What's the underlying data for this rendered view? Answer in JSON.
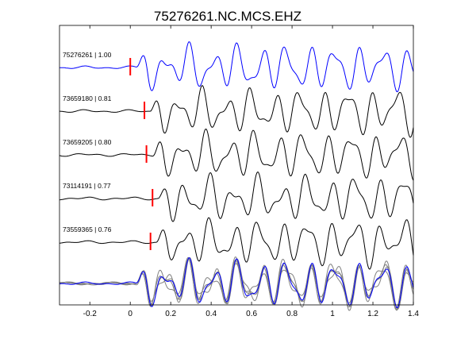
{
  "chart_data": {
    "type": "line",
    "title": "75276261.NC.MCS.EHZ",
    "xlabel": "",
    "ylabel": "",
    "xlim": [
      -0.35,
      1.4
    ],
    "xticks": [
      -0.2,
      0,
      0.2,
      0.4,
      0.6,
      0.8,
      1,
      1.2,
      1.4
    ],
    "xtick_labels": [
      "-0.2",
      "0",
      "0.2",
      "0.4",
      "0.6",
      "0.8",
      "1",
      "1.2",
      "1.4"
    ],
    "grid": false,
    "colors": {
      "template": "#0000ff",
      "match": "#000000",
      "stack_match": "#808080",
      "pick": "#ff0000"
    },
    "traces": [
      {
        "label": "75276261 | 1.00",
        "id": "75276261",
        "cc": 1.0,
        "pick_time": 0.0,
        "color": "template",
        "seed": 11
      },
      {
        "label": "73659180 | 0.81",
        "id": "73659180",
        "cc": 0.81,
        "pick_time": 0.07,
        "color": "match",
        "seed": 23
      },
      {
        "label": "73659205 | 0.80",
        "id": "73659205",
        "cc": 0.8,
        "pick_time": 0.08,
        "color": "match",
        "seed": 37
      },
      {
        "label": "73114191 | 0.77",
        "id": "73114191",
        "cc": 0.77,
        "pick_time": 0.11,
        "color": "match",
        "seed": 41
      },
      {
        "label": "73559365 | 0.76",
        "id": "73559365",
        "cc": 0.76,
        "pick_time": 0.1,
        "color": "match",
        "seed": 53
      }
    ],
    "stack": {
      "description_visible": false
    }
  }
}
